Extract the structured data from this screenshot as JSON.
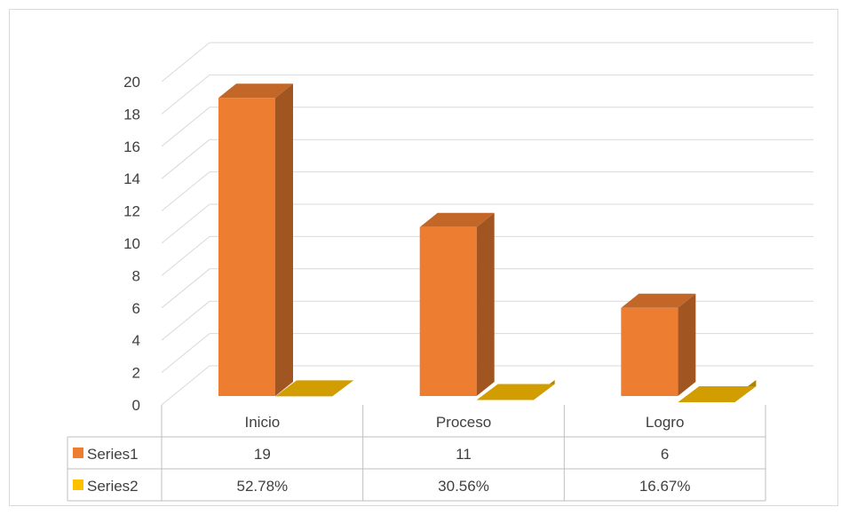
{
  "chart_data": {
    "type": "bar",
    "categories": [
      "Inicio",
      "Proceso",
      "Logro"
    ],
    "series": [
      {
        "name": "Series1",
        "values": [
          19,
          11,
          6
        ],
        "labels": [
          "19",
          "11",
          "6"
        ],
        "color": "#ED7D31"
      },
      {
        "name": "Series2",
        "values": [
          0.5278,
          0.3056,
          0.1667
        ],
        "labels": [
          "52.78%",
          "30.56%",
          "16.67%"
        ],
        "color": "#FFC000"
      }
    ],
    "ylim": [
      0,
      20
    ],
    "yticks": [
      "0",
      "2",
      "4",
      "6",
      "8",
      "10",
      "12",
      "14",
      "16",
      "18",
      "20"
    ],
    "grid": true,
    "legend": "data-table",
    "style": "3d-column"
  }
}
